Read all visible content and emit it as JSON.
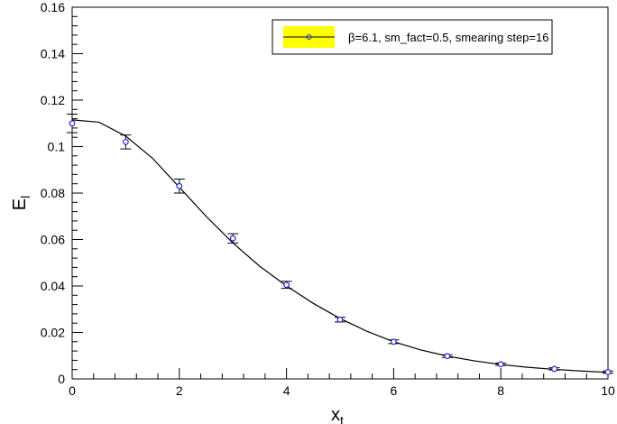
{
  "chart_data": {
    "type": "scatter",
    "xlim": [
      0,
      10
    ],
    "ylim": [
      0,
      0.16
    ],
    "x_ticks": [
      {
        "value": 0,
        "label": "0"
      },
      {
        "value": 2,
        "label": "2"
      },
      {
        "value": 4,
        "label": "4"
      },
      {
        "value": 6,
        "label": "6"
      },
      {
        "value": 8,
        "label": "8"
      },
      {
        "value": 10,
        "label": "10"
      }
    ],
    "y_ticks": [
      {
        "value": 0,
        "label": "0"
      },
      {
        "value": 0.02,
        "label": "0.02"
      },
      {
        "value": 0.04,
        "label": "0.04"
      },
      {
        "value": 0.06,
        "label": "0.06"
      },
      {
        "value": 0.08,
        "label": "0.08"
      },
      {
        "value": 0.1,
        "label": "0.1"
      },
      {
        "value": 0.12,
        "label": "0.12"
      },
      {
        "value": 0.14,
        "label": "0.14"
      },
      {
        "value": 0.16,
        "label": "0.16"
      }
    ],
    "xlabel": {
      "main": "x",
      "sub": "t"
    },
    "ylabel": {
      "main": "E",
      "sub": "l"
    },
    "grid": false,
    "legend_position": "top-right",
    "series": [
      {
        "name": "β=6.1, sm_fact=0.5, smearing step=16",
        "marker_color": "#1f2bd0",
        "legend_fill": "#ffff00",
        "points": [
          {
            "x": 0,
            "y": 0.11,
            "err": 0.004
          },
          {
            "x": 1,
            "y": 0.102,
            "err": 0.003
          },
          {
            "x": 2,
            "y": 0.083,
            "err": 0.003
          },
          {
            "x": 3,
            "y": 0.0605,
            "err": 0.002
          },
          {
            "x": 4,
            "y": 0.0405,
            "err": 0.0015
          },
          {
            "x": 5,
            "y": 0.0255,
            "err": 0.001
          },
          {
            "x": 6,
            "y": 0.016,
            "err": 0.0008
          },
          {
            "x": 7,
            "y": 0.0098,
            "err": 0.0006
          },
          {
            "x": 8,
            "y": 0.0063,
            "err": 0.0005
          },
          {
            "x": 9,
            "y": 0.0043,
            "err": 0.0005
          },
          {
            "x": 10,
            "y": 0.0029,
            "err": 0.0005
          }
        ]
      }
    ],
    "fit_curve": {
      "color": "#000000",
      "points": [
        {
          "x": 0,
          "y": 0.1115
        },
        {
          "x": 0.5,
          "y": 0.1105
        },
        {
          "x": 1,
          "y": 0.1045
        },
        {
          "x": 1.5,
          "y": 0.095
        },
        {
          "x": 2,
          "y": 0.0825
        },
        {
          "x": 2.5,
          "y": 0.07
        },
        {
          "x": 3,
          "y": 0.0585
        },
        {
          "x": 3.5,
          "y": 0.0485
        },
        {
          "x": 4,
          "y": 0.04
        },
        {
          "x": 4.5,
          "y": 0.0325
        },
        {
          "x": 5,
          "y": 0.026
        },
        {
          "x": 5.5,
          "y": 0.0205
        },
        {
          "x": 6,
          "y": 0.016
        },
        {
          "x": 6.5,
          "y": 0.0125
        },
        {
          "x": 7,
          "y": 0.0098
        },
        {
          "x": 7.5,
          "y": 0.0078
        },
        {
          "x": 8,
          "y": 0.0062
        },
        {
          "x": 8.5,
          "y": 0.005
        },
        {
          "x": 9,
          "y": 0.0041
        },
        {
          "x": 9.5,
          "y": 0.0034
        },
        {
          "x": 10,
          "y": 0.0028
        }
      ]
    }
  }
}
